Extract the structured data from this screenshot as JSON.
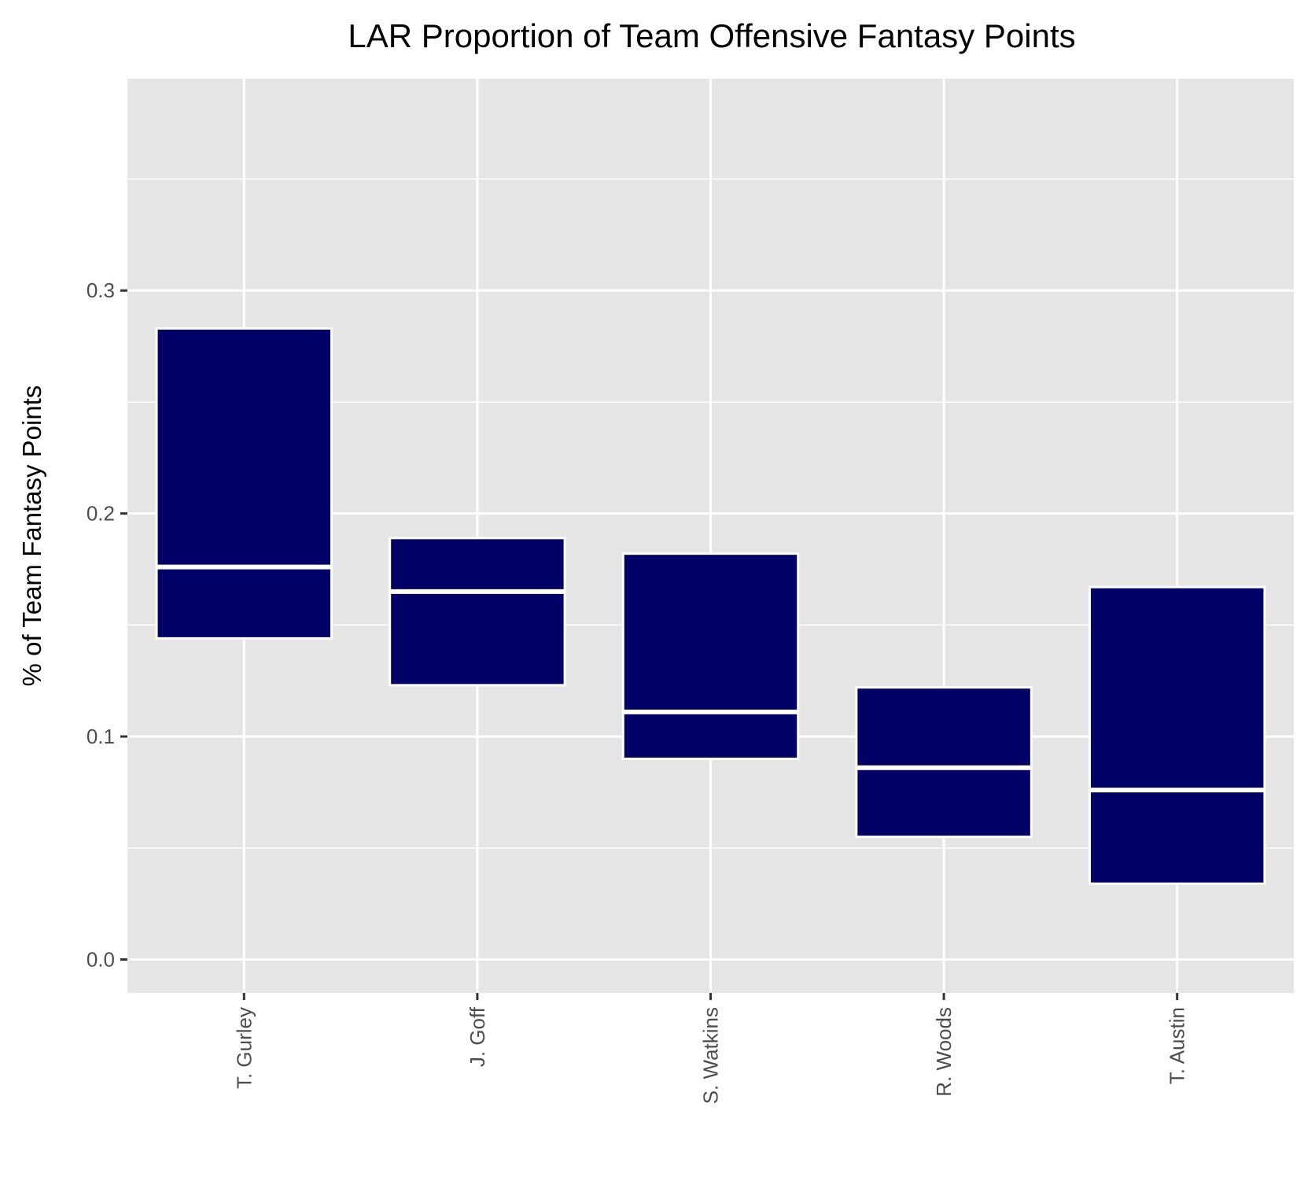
{
  "chart_data": {
    "type": "boxplot",
    "title": "LAR Proportion of Team Offensive Fantasy Points",
    "ylabel": "% of Team Fantasy Points",
    "xlabel": "",
    "ylim": [
      -0.015,
      0.395
    ],
    "yticks": [
      0.0,
      0.1,
      0.2,
      0.3
    ],
    "ytick_labels": [
      "0.0",
      "0.1",
      "0.2",
      "0.3"
    ],
    "y_minor_ticks": [
      0.05,
      0.15,
      0.25,
      0.35
    ],
    "categories": [
      "T. Gurley",
      "J. Goff",
      "S. Watkins",
      "R. Woods",
      "T. Austin"
    ],
    "boxes": [
      {
        "player": "T. Gurley",
        "q1": 0.144,
        "median": 0.176,
        "q3": 0.283
      },
      {
        "player": "J. Goff",
        "q1": 0.123,
        "median": 0.165,
        "q3": 0.189
      },
      {
        "player": "S. Watkins",
        "q1": 0.09,
        "median": 0.111,
        "q3": 0.182
      },
      {
        "player": "R. Woods",
        "q1": 0.055,
        "median": 0.086,
        "q3": 0.122
      },
      {
        "player": "T. Austin",
        "q1": 0.034,
        "median": 0.076,
        "q3": 0.167
      }
    ],
    "fill_color": "#000066",
    "outline_color": "#ffffff",
    "panel_color": "#e5e5e5",
    "grid": true,
    "legend": "none"
  }
}
